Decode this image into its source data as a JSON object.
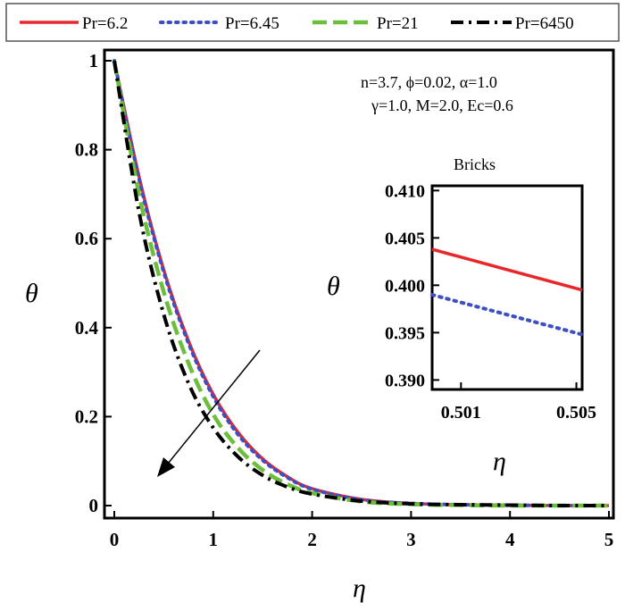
{
  "chart_data": [
    {
      "type": "line",
      "xlabel": "η",
      "ylabel": "θ",
      "xlim": [
        0,
        5
      ],
      "ylim": [
        0,
        1
      ],
      "x_ticks": [
        "0",
        "1",
        "2",
        "3",
        "4",
        "5"
      ],
      "y_ticks": [
        "0",
        "0.2",
        "0.4",
        "0.6",
        "0.8",
        "1"
      ],
      "grid": false,
      "legend_position": "top",
      "parameters": [
        "n=3.7, ϕ=0.02, α=1.0",
        "γ=1.0, M=2.0, Ec=0.6"
      ],
      "annotation": "arrow pointing toward increasing Pr",
      "series": [
        {
          "name": "Pr=6.2",
          "color": "#e8272a",
          "style": "solid",
          "x": [
            0,
            0.25,
            0.5,
            0.75,
            1.0,
            1.25,
            1.5,
            1.75,
            2.0,
            2.5,
            3.0,
            3.5,
            4.0,
            4.5,
            5.0
          ],
          "y": [
            1.0,
            0.74,
            0.53,
            0.37,
            0.25,
            0.165,
            0.105,
            0.065,
            0.038,
            0.014,
            0.005,
            0.002,
            0.001,
            0.0,
            0.0
          ]
        },
        {
          "name": "Pr=6.45",
          "color": "#3d4fc2",
          "style": "dotted",
          "x": [
            0,
            0.25,
            0.5,
            0.75,
            1.0,
            1.25,
            1.5,
            1.75,
            2.0,
            2.5,
            3.0,
            3.5,
            4.0,
            4.5,
            5.0
          ],
          "y": [
            1.0,
            0.735,
            0.525,
            0.365,
            0.245,
            0.16,
            0.102,
            0.063,
            0.037,
            0.013,
            0.005,
            0.002,
            0.001,
            0.0,
            0.0
          ]
        },
        {
          "name": "Pr=21",
          "color": "#6cbf3c",
          "style": "dashed",
          "x": [
            0,
            0.25,
            0.5,
            0.75,
            1.0,
            1.25,
            1.5,
            1.75,
            2.0,
            2.5,
            3.0,
            3.5,
            4.0,
            4.5,
            5.0
          ],
          "y": [
            1.0,
            0.7,
            0.48,
            0.32,
            0.205,
            0.13,
            0.08,
            0.048,
            0.028,
            0.009,
            0.003,
            0.001,
            0.0,
            0.0,
            0.0
          ]
        },
        {
          "name": "Pr=6450",
          "color": "#000000",
          "style": "dashdot",
          "x": [
            0,
            0.25,
            0.5,
            0.75,
            1.0,
            1.25,
            1.5,
            1.75,
            2.0,
            2.5,
            3.0,
            3.5,
            4.0,
            4.5,
            5.0
          ],
          "y": [
            1.0,
            0.66,
            0.43,
            0.275,
            0.175,
            0.11,
            0.068,
            0.042,
            0.026,
            0.01,
            0.004,
            0.002,
            0.001,
            0.0,
            0.0
          ]
        }
      ]
    },
    {
      "type": "line",
      "title": "Bricks",
      "xlabel": "η",
      "ylabel": "θ",
      "xlim": [
        0.5,
        0.5052
      ],
      "ylim": [
        0.389,
        0.4105
      ],
      "x_ticks": [
        "0.501",
        "0.505"
      ],
      "y_ticks": [
        "0.390",
        "0.395",
        "0.400",
        "0.405",
        "0.410"
      ],
      "series": [
        {
          "name": "Pr=6.2",
          "color": "#e8272a",
          "style": "solid",
          "x": [
            0.5,
            0.5052
          ],
          "y": [
            0.4038,
            0.3995
          ]
        },
        {
          "name": "Pr=6.45",
          "color": "#3d4fc2",
          "style": "dotted",
          "x": [
            0.5,
            0.5052
          ],
          "y": [
            0.399,
            0.3948
          ]
        }
      ]
    }
  ]
}
